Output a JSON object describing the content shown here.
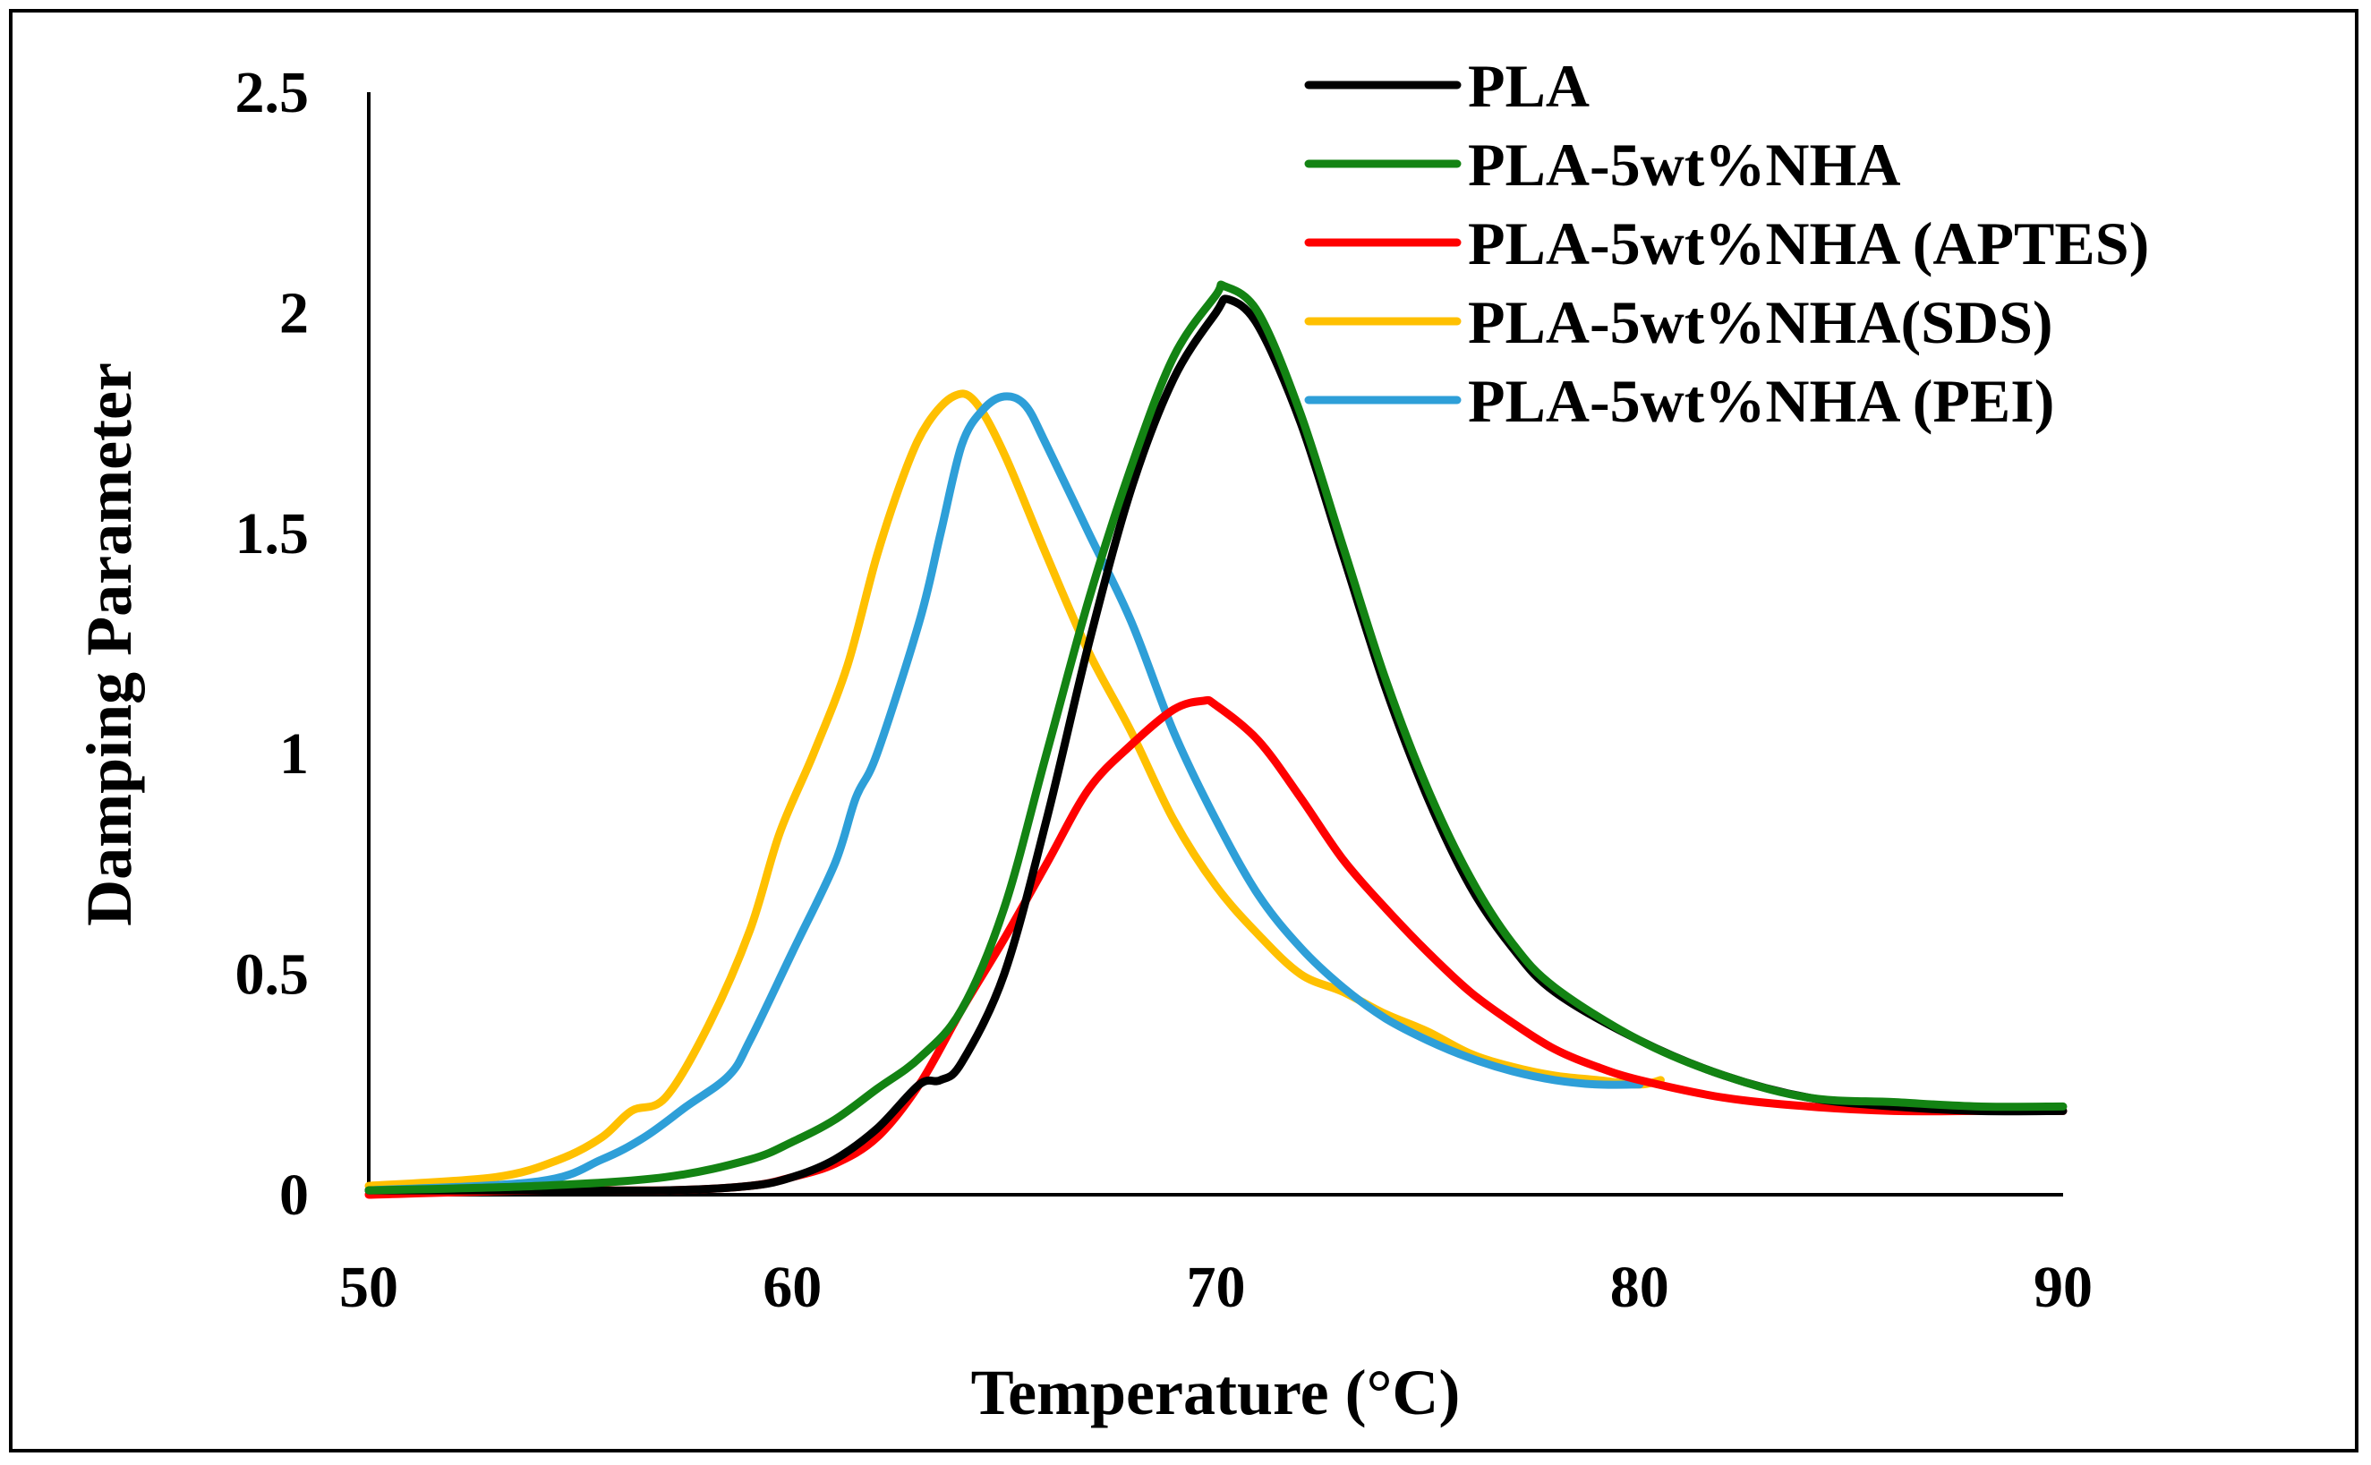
{
  "chart_data": {
    "type": "line",
    "title": "",
    "xlabel": "Temperature (°C)",
    "ylabel": "Damping Parameter",
    "xlim": [
      50,
      90
    ],
    "ylim": [
      0,
      2.5
    ],
    "x_ticks": [
      "50",
      "60",
      "70",
      "80",
      "90"
    ],
    "y_ticks": [
      "0",
      "0.5",
      "1",
      "1.5",
      "2",
      "2.5"
    ],
    "legend_position": "top-right",
    "grid": false,
    "series": [
      {
        "name": "PLA",
        "color": "#000000",
        "x": [
          50,
          54,
          57,
          59,
          60,
          61,
          62,
          63,
          63.5,
          64,
          65,
          66,
          67,
          68,
          69,
          70,
          70.3,
          71,
          72,
          73,
          74,
          75,
          76,
          77,
          78,
          80,
          82,
          84,
          86,
          88,
          90
        ],
        "y": [
          0.01,
          0.01,
          0.01,
          0.02,
          0.04,
          0.08,
          0.15,
          0.25,
          0.26,
          0.3,
          0.5,
          0.85,
          1.25,
          1.6,
          1.85,
          2.0,
          2.03,
          1.97,
          1.75,
          1.45,
          1.15,
          0.9,
          0.7,
          0.56,
          0.46,
          0.35,
          0.27,
          0.22,
          0.2,
          0.19,
          0.19
        ]
      },
      {
        "name": "PLA-5wt%NHA",
        "color": "#138313",
        "x": [
          50,
          54,
          57,
          59,
          60,
          61,
          62,
          63,
          64,
          65,
          66,
          67,
          68,
          69,
          70,
          70.2,
          71,
          72,
          73,
          74,
          75,
          76,
          77,
          78,
          80,
          82,
          84,
          86,
          88,
          90
        ],
        "y": [
          0.01,
          0.02,
          0.04,
          0.08,
          0.12,
          0.17,
          0.24,
          0.31,
          0.42,
          0.65,
          1.0,
          1.35,
          1.65,
          1.9,
          2.04,
          2.06,
          2.0,
          1.77,
          1.47,
          1.17,
          0.92,
          0.72,
          0.57,
          0.47,
          0.35,
          0.27,
          0.22,
          0.21,
          0.2,
          0.2
        ]
      },
      {
        "name": "PLA-5wt%NHA (APTES)",
        "color": "#ff0000",
        "x": [
          50,
          54,
          57,
          59,
          60,
          61,
          62,
          63,
          64,
          65,
          66,
          67,
          68,
          69,
          69.7,
          70,
          71,
          72,
          73,
          74,
          75,
          76,
          77,
          78,
          79,
          80,
          82,
          84,
          86,
          88,
          90
        ],
        "y": [
          0.0,
          0.01,
          0.01,
          0.02,
          0.04,
          0.07,
          0.13,
          0.25,
          0.42,
          0.58,
          0.75,
          0.92,
          1.02,
          1.1,
          1.12,
          1.11,
          1.03,
          0.9,
          0.76,
          0.65,
          0.55,
          0.46,
          0.39,
          0.33,
          0.29,
          0.26,
          0.22,
          0.2,
          0.19,
          0.19,
          0.19
        ]
      },
      {
        "name": "PLA-5wt%NHA(SDS)",
        "color": "#ffc000",
        "x": [
          50,
          53,
          54.5,
          55.5,
          56.2,
          57,
          58,
          59,
          59.7,
          60.5,
          61.3,
          62,
          62.7,
          63.2,
          63.8,
          64.3,
          65,
          66,
          67,
          68,
          69,
          70,
          71,
          72,
          73,
          74,
          75,
          76,
          77,
          78,
          79,
          80,
          80.5
        ],
        "y": [
          0.02,
          0.04,
          0.08,
          0.13,
          0.19,
          0.22,
          0.38,
          0.6,
          0.82,
          1.0,
          1.2,
          1.45,
          1.65,
          1.75,
          1.81,
          1.8,
          1.68,
          1.45,
          1.23,
          1.05,
          0.85,
          0.7,
          0.59,
          0.5,
          0.46,
          0.41,
          0.37,
          0.32,
          0.29,
          0.27,
          0.26,
          0.25,
          0.26
        ]
      },
      {
        "name": "PLA-5wt%NHA (PEI)",
        "color": "#2e9fd8",
        "x": [
          50,
          54,
          55.5,
          56.5,
          57.5,
          58.5,
          59,
          60,
          61,
          61.5,
          62,
          63,
          63.5,
          64,
          64.5,
          65,
          65.5,
          66,
          67,
          68,
          69,
          70,
          71,
          72,
          73,
          74,
          75,
          76,
          77,
          78,
          79,
          80
        ],
        "y": [
          0.01,
          0.03,
          0.08,
          0.13,
          0.2,
          0.27,
          0.35,
          0.55,
          0.75,
          0.9,
          1.0,
          1.3,
          1.5,
          1.7,
          1.78,
          1.81,
          1.79,
          1.7,
          1.5,
          1.3,
          1.05,
          0.85,
          0.68,
          0.56,
          0.47,
          0.4,
          0.35,
          0.31,
          0.28,
          0.26,
          0.25,
          0.25
        ]
      }
    ]
  }
}
